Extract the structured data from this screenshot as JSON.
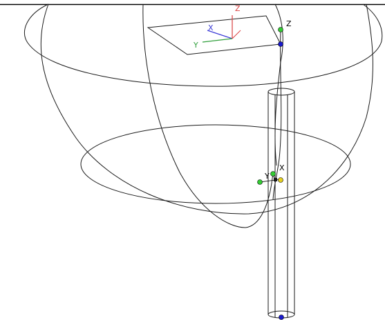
{
  "viewport": {
    "background": "#ffffff",
    "wire_color": "#1a1a1a"
  },
  "ucs_icon": {
    "x_label": "X",
    "y_label": "Y",
    "z_label": "Z",
    "x_color": "#3b3bd6",
    "y_color": "#2e9e3a",
    "z_color": "#d94040"
  },
  "grips": {
    "top_z_label": "Z",
    "mid_x_label": "X",
    "mid_y_label": "Y",
    "green": "#33cc33",
    "blue": "#1a1acc",
    "yellow": "#e6d020"
  }
}
